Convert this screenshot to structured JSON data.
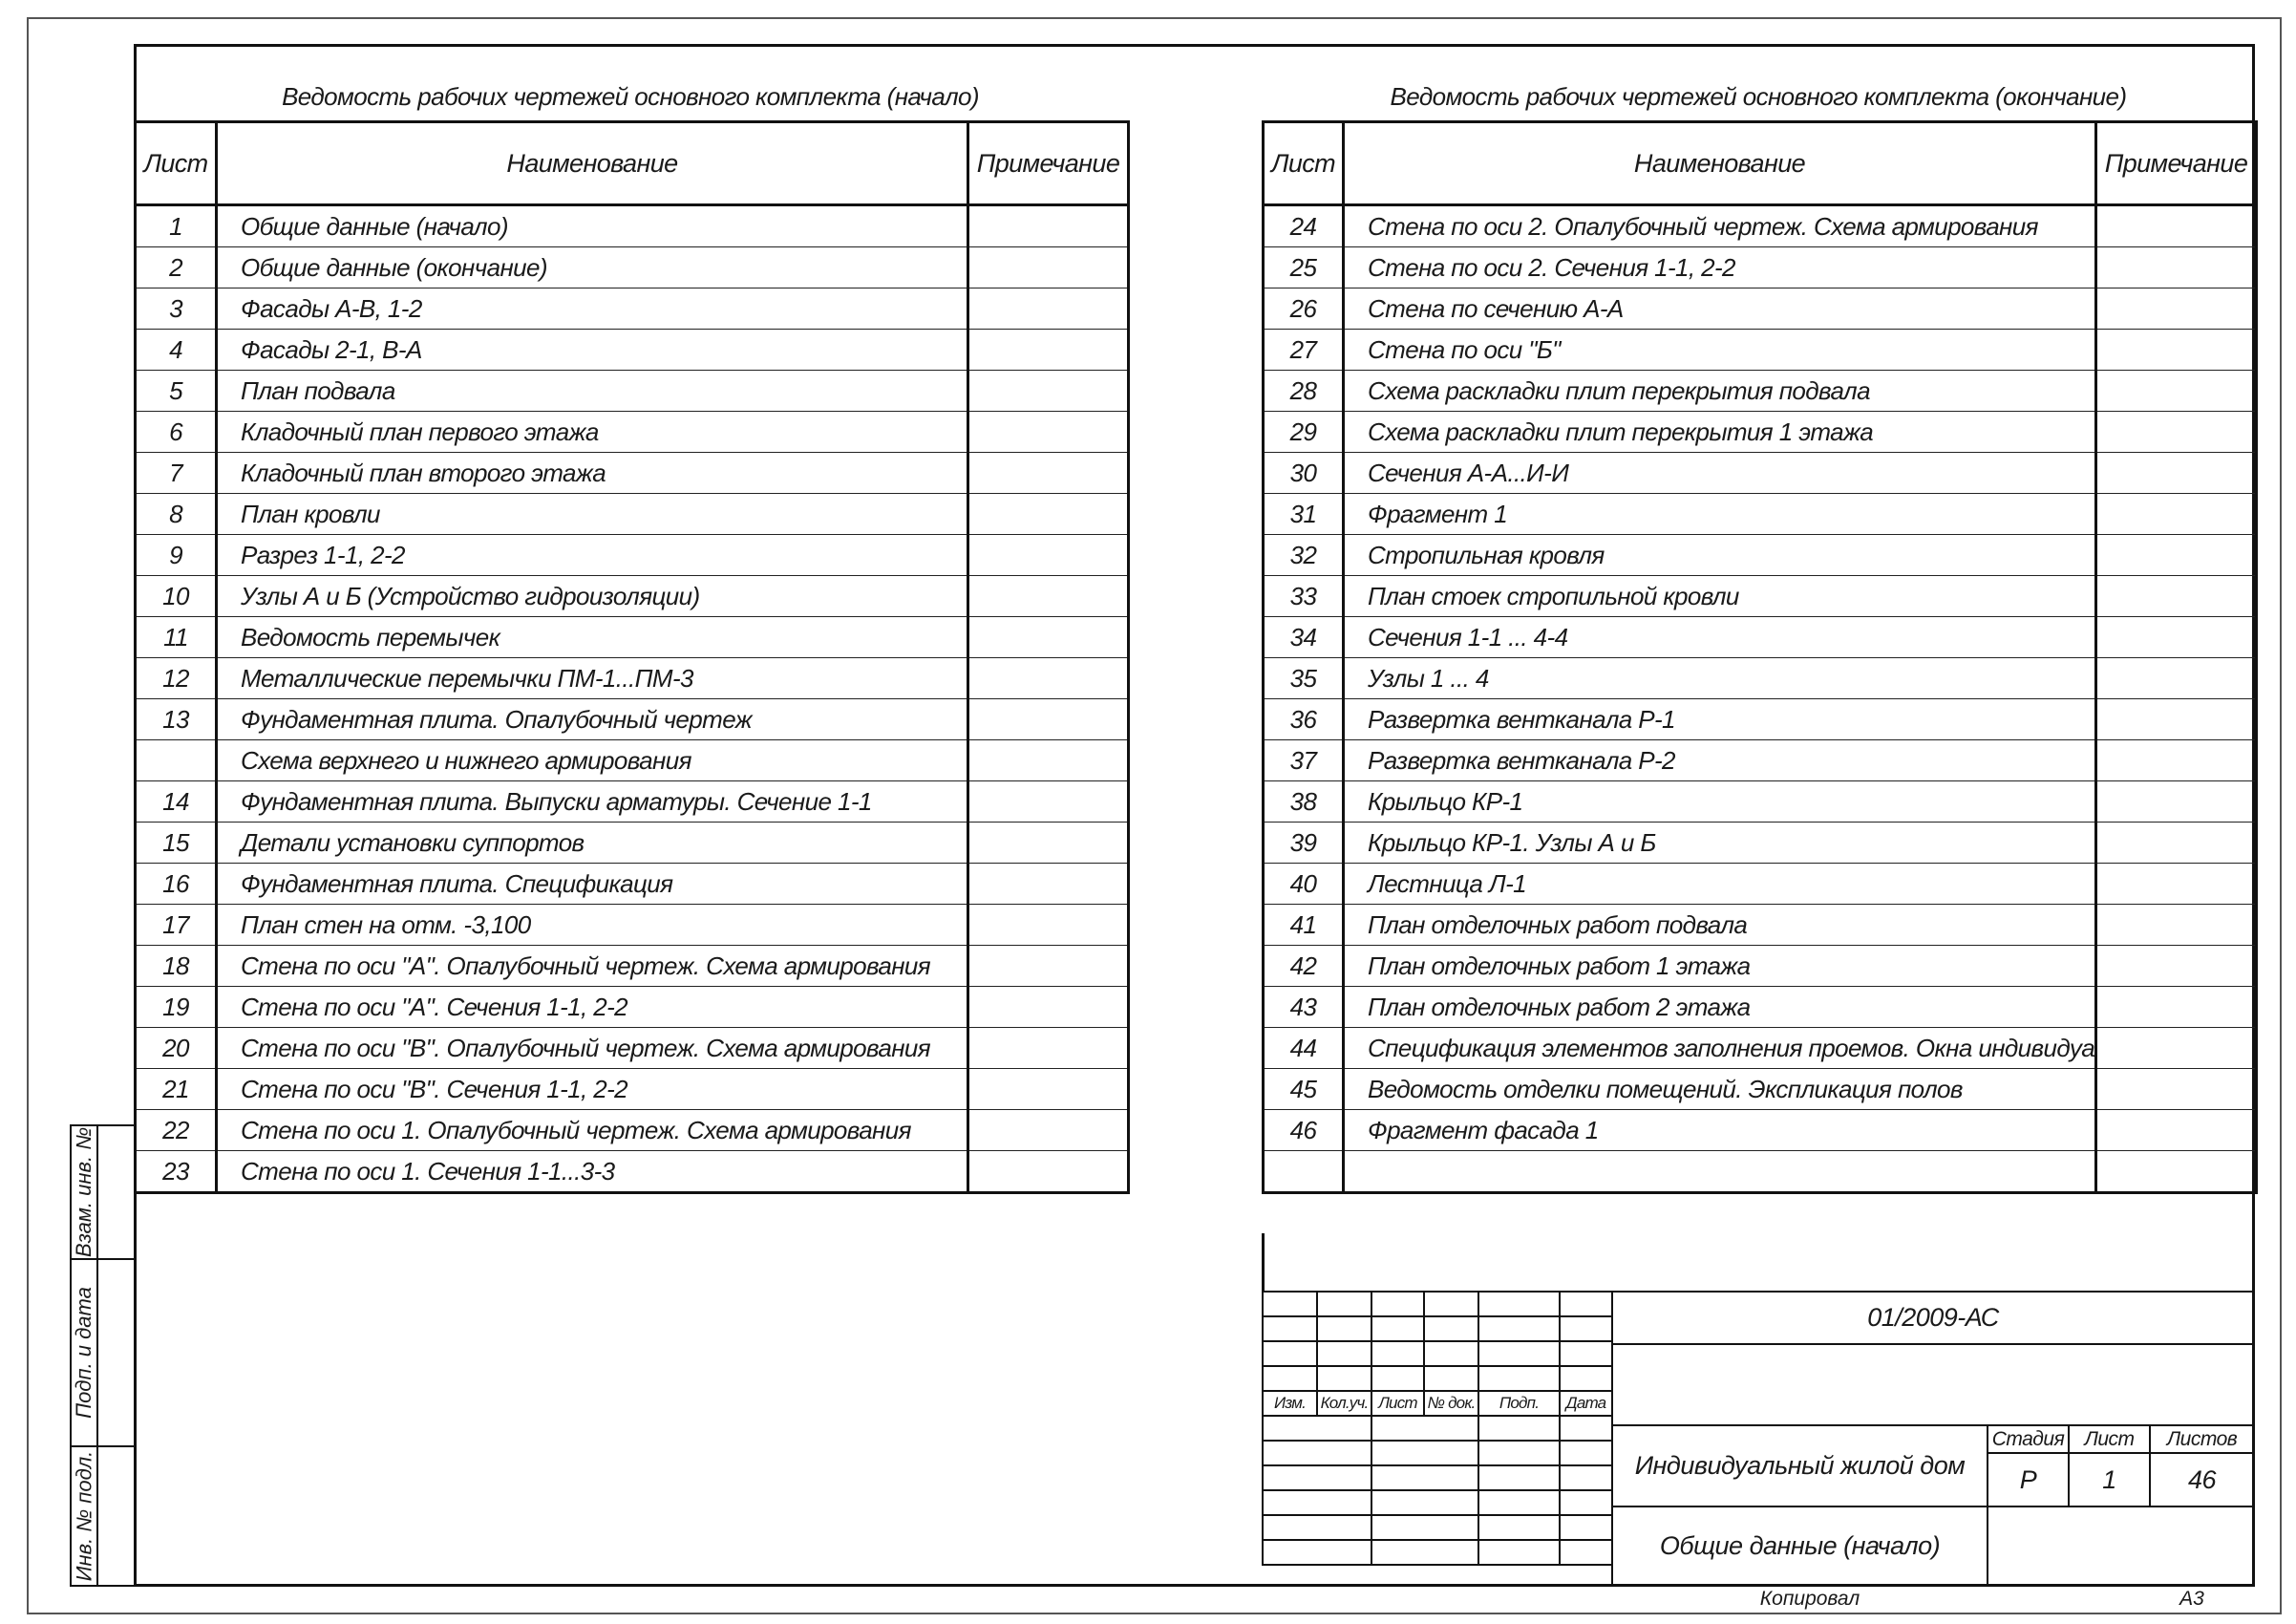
{
  "left_table": {
    "title": "Ведомость рабочих чертежей основного комплекта (начало)",
    "headers": [
      "Лист",
      "Наименование",
      "Примечание"
    ],
    "rows": [
      {
        "sheet": "1",
        "name": "Общие данные (начало)"
      },
      {
        "sheet": "2",
        "name": "Общие данные (окончание)"
      },
      {
        "sheet": "3",
        "name": "Фасады А-В, 1-2"
      },
      {
        "sheet": "4",
        "name": "Фасады 2-1, В-А"
      },
      {
        "sheet": "5",
        "name": "План подвала"
      },
      {
        "sheet": "6",
        "name": "Кладочный план первого этажа"
      },
      {
        "sheet": "7",
        "name": "Кладочный план второго этажа"
      },
      {
        "sheet": "8",
        "name": "План кровли"
      },
      {
        "sheet": "9",
        "name": "Разрез 1-1, 2-2"
      },
      {
        "sheet": "10",
        "name": "Узлы А и Б (Устройство гидроизоляции)"
      },
      {
        "sheet": "11",
        "name": "Ведомость перемычек"
      },
      {
        "sheet": "12",
        "name": "Металлические перемычки ПМ-1...ПМ-3"
      },
      {
        "sheet": "13",
        "name": "Фундаментная плита. Опалубочный чертеж"
      },
      {
        "sheet": "",
        "name": "Схема верхнего и нижнего армирования"
      },
      {
        "sheet": "14",
        "name": "Фундаментная плита. Выпуски арматуры. Сечение 1-1"
      },
      {
        "sheet": "15",
        "name": "Детали установки суппортов"
      },
      {
        "sheet": "16",
        "name": "Фундаментная плита. Спецификация"
      },
      {
        "sheet": "17",
        "name": "План стен на отм. -3,100"
      },
      {
        "sheet": "18",
        "name": "Стена по оси \"А\". Опалубочный чертеж. Схема армирования"
      },
      {
        "sheet": "19",
        "name": "Стена по оси \"А\". Сечения 1-1, 2-2"
      },
      {
        "sheet": "20",
        "name": "Стена по оси \"В\". Опалубочный чертеж. Схема армирования"
      },
      {
        "sheet": "21",
        "name": "Стена по оси \"В\". Сечения 1-1, 2-2"
      },
      {
        "sheet": "22",
        "name": "Стена по оси 1. Опалубочный чертеж. Схема армирования"
      },
      {
        "sheet": "23",
        "name": "Стена по оси 1. Сечения 1-1...3-3"
      }
    ]
  },
  "right_table": {
    "title": "Ведомость рабочих чертежей основного комплекта (окончание)",
    "headers": [
      "Лист",
      "Наименование",
      "Примечание"
    ],
    "rows": [
      {
        "sheet": "24",
        "name": "Стена по оси 2. Опалубочный чертеж. Схема армирования"
      },
      {
        "sheet": "25",
        "name": "Стена по оси 2. Сечения 1-1, 2-2"
      },
      {
        "sheet": "26",
        "name": "Стена по сечению А-А"
      },
      {
        "sheet": "27",
        "name": "Стена по оси \"Б\""
      },
      {
        "sheet": "28",
        "name": "Схема раскладки плит перекрытия подвала"
      },
      {
        "sheet": "29",
        "name": "Схема раскладки плит перекрытия 1 этажа"
      },
      {
        "sheet": "30",
        "name": "Сечения А-А...И-И"
      },
      {
        "sheet": "31",
        "name": "Фрагмент 1"
      },
      {
        "sheet": "32",
        "name": "Стропильная кровля"
      },
      {
        "sheet": "33",
        "name": "План стоек стропильной кровли"
      },
      {
        "sheet": "34",
        "name": "Сечения 1-1 ... 4-4"
      },
      {
        "sheet": "35",
        "name": "Узлы 1 ... 4"
      },
      {
        "sheet": "36",
        "name": "Развертка вентканала Р-1"
      },
      {
        "sheet": "37",
        "name": "Развертка вентканала Р-2"
      },
      {
        "sheet": "38",
        "name": "Крыльцо КР-1"
      },
      {
        "sheet": "39",
        "name": "Крыльцо КР-1. Узлы А и Б"
      },
      {
        "sheet": "40",
        "name": "Лестница Л-1"
      },
      {
        "sheet": "41",
        "name": "План отделочных работ подвала"
      },
      {
        "sheet": "42",
        "name": "План отделочных работ 1 этажа"
      },
      {
        "sheet": "43",
        "name": "План отделочных работ 2 этажа"
      },
      {
        "sheet": "44",
        "name": "Спецификация элементов заполнения проемов. Окна индивидуальные"
      },
      {
        "sheet": "45",
        "name": "Ведомость отделки помещений. Экспликация полов"
      },
      {
        "sheet": "46",
        "name": "Фрагмент фасада 1"
      },
      {
        "sheet": "",
        "name": ""
      }
    ]
  },
  "title_block": {
    "revision_headers": [
      "Изм.",
      "Кол.уч.",
      "Лист",
      "№ док.",
      "Подп.",
      "Дата"
    ],
    "document_code": "01/2009-АС",
    "project_name": "Индивидуальный жилой дом",
    "sheet_title": "Общие данные (начало)",
    "stage_label": "Стадия",
    "sheet_label": "Лист",
    "sheets_label": "Листов",
    "stage": "Р",
    "sheet": "1",
    "sheets": "46",
    "copied_by_label": "Копировал",
    "format": "А3"
  },
  "side_stamp": {
    "labels": [
      "Взам. инв. №",
      "Подп. и дата",
      "Инв. № подл."
    ]
  }
}
